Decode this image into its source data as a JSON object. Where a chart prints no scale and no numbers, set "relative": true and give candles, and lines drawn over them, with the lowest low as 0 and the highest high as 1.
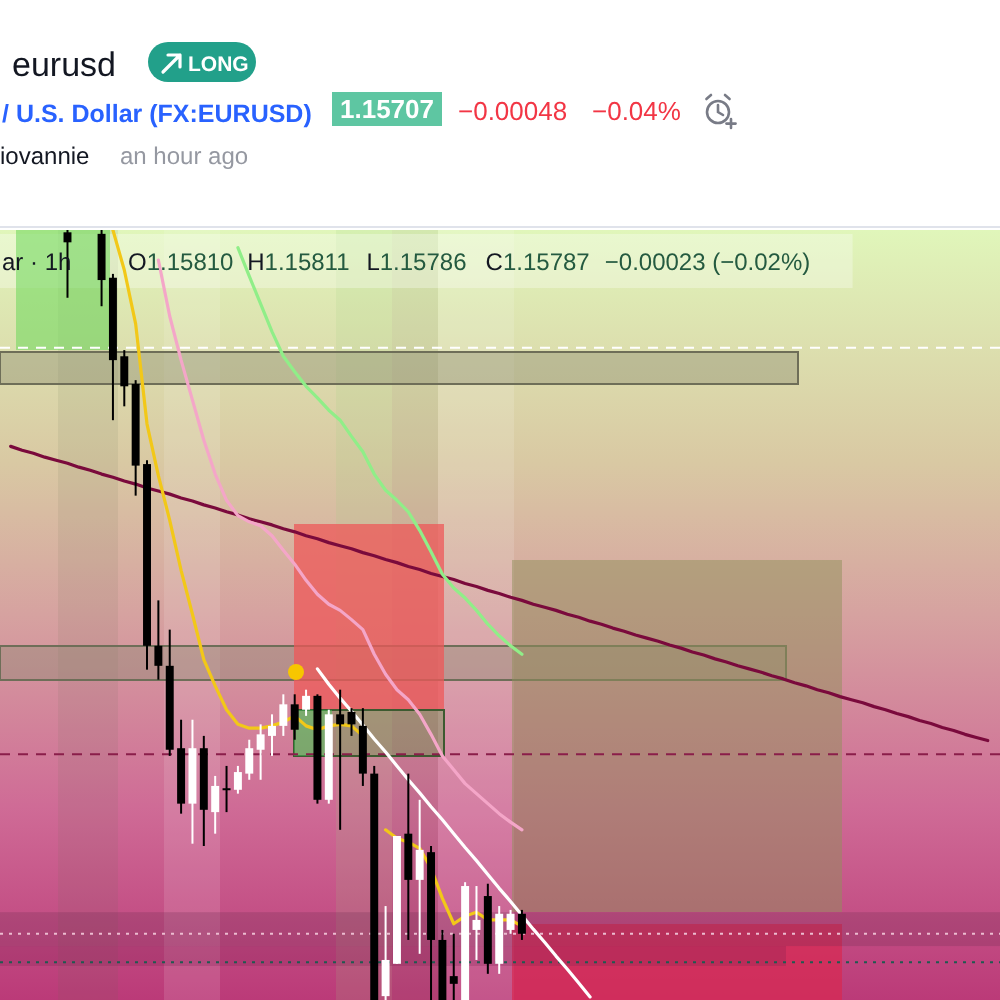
{
  "chart_data": {
    "type": "candlestick",
    "relative": true,
    "title": "eurusd",
    "subtitle": "/ U.S. Dollar (FX:EURUSD)",
    "annotations": [
      "LONG",
      "1.15707",
      "−0.00048",
      "−0.04%",
      "iovannie",
      "an hour ago",
      "ar · 1h",
      "O1.15810",
      "H1.15811",
      "L1.15786",
      "C1.15787",
      "−0.00023 (−0.02%)"
    ],
    "categories": [
      null,
      null,
      null,
      null,
      null,
      null,
      null,
      null,
      null,
      null,
      null,
      null,
      null,
      null,
      null,
      null,
      null,
      null,
      null,
      null,
      null,
      null,
      null,
      null,
      null,
      null,
      null,
      null,
      null,
      null,
      null,
      null,
      null,
      null,
      null,
      null,
      null,
      null,
      null,
      null,
      null,
      null,
      null,
      null,
      null,
      null,
      null,
      null,
      null,
      null,
      null,
      null,
      null,
      null,
      null,
      null,
      null,
      null,
      null,
      null,
      null,
      null,
      null,
      null,
      null,
      null,
      null,
      null,
      null,
      null,
      null,
      null,
      null,
      null,
      null,
      null,
      null,
      null,
      null,
      null,
      null,
      null,
      null,
      null,
      null,
      null,
      null
    ],
    "ohlc": [
      null,
      null,
      null,
      null,
      null,
      [
        0.997,
        1.0,
        0.912,
        0.984
      ],
      null,
      null,
      [
        0.995,
        1.0,
        0.901,
        0.935
      ],
      [
        0.938,
        0.943,
        0.753,
        0.831
      ],
      [
        0.836,
        0.844,
        0.771,
        0.797
      ],
      [
        0.8,
        0.805,
        0.655,
        0.694
      ],
      [
        0.696,
        0.701,
        0.429,
        0.46
      ],
      [
        0.46,
        0.519,
        0.416,
        0.434
      ],
      [
        0.434,
        0.481,
        0.317,
        0.325
      ],
      [
        0.327,
        0.364,
        0.242,
        0.255
      ],
      [
        0.255,
        0.364,
        0.203,
        0.327
      ],
      [
        0.327,
        0.343,
        0.2,
        0.247
      ],
      [
        0.244,
        0.291,
        0.216,
        0.278
      ],
      [
        0.275,
        0.304,
        0.244,
        0.273
      ],
      [
        0.273,
        0.304,
        0.268,
        0.296
      ],
      [
        0.294,
        0.338,
        0.286,
        0.327
      ],
      [
        0.325,
        0.358,
        0.286,
        0.345
      ],
      [
        0.343,
        0.371,
        0.317,
        0.356
      ],
      [
        0.356,
        0.397,
        0.343,
        0.384
      ],
      [
        0.384,
        0.397,
        0.338,
        0.351
      ],
      [
        0.377,
        0.403,
        0.369,
        0.395
      ],
      [
        0.395,
        0.397,
        0.255,
        0.26
      ],
      [
        0.26,
        0.377,
        0.255,
        0.371
      ],
      [
        0.371,
        0.403,
        0.221,
        0.358
      ],
      [
        0.374,
        0.379,
        0.343,
        0.358
      ],
      [
        0.356,
        0.379,
        0.278,
        0.294
      ],
      [
        0.294,
        0.304,
        0,
        0
      ],
      [
        0.005,
        0.122,
        0,
        0.052
      ],
      [
        0.047,
        0.213,
        0.047,
        0.213
      ],
      [
        0.216,
        0.294,
        0.078,
        0.156
      ],
      [
        0.156,
        0.26,
        0.06,
        0.195
      ],
      [
        0.192,
        0.2,
        0,
        0.078
      ],
      [
        0.078,
        0.091,
        0,
        0
      ],
      [
        0.031,
        0.086,
        0,
        0.021
      ],
      [
        0,
        0.153,
        0,
        0.148
      ],
      [
        0.091,
        0.148,
        0.052,
        0.104
      ],
      [
        0.135,
        0.151,
        0.034,
        0.047
      ],
      [
        0.047,
        0.122,
        0.034,
        0.112
      ],
      [
        0.091,
        0.117,
        0.086,
        0.112
      ],
      [
        0.112,
        0.117,
        0.078,
        0.086
      ],
      null,
      null,
      null,
      null,
      null,
      null,
      null,
      null,
      null,
      null,
      null,
      null,
      null,
      null,
      null,
      null,
      null,
      null,
      null,
      null,
      null,
      null,
      null,
      null,
      null,
      null,
      null,
      null,
      null,
      null,
      null,
      null,
      null,
      null,
      null,
      null,
      null,
      null,
      null,
      null,
      null
    ],
    "colors": [
      null,
      null,
      null,
      null,
      null,
      "#000000",
      null,
      null,
      "#000000",
      "#000000",
      "#000000",
      "#000000",
      "#000000",
      "#000000",
      "#000000",
      "#000000",
      "#ffffff",
      "#000000",
      "#ffffff",
      "#000000",
      "#ffffff",
      "#ffffff",
      "#ffffff",
      "#ffffff",
      "#ffffff",
      "#000000",
      "#ffffff",
      "#000000",
      "#ffffff",
      "#000000",
      "#000000",
      "#000000",
      "#000000",
      "#ffffff",
      "#ffffff",
      "#000000",
      "#ffffff",
      "#000000",
      "#000000",
      "#000000",
      "#ffffff",
      "#ffffff",
      "#000000",
      "#ffffff",
      "#ffffff",
      "#000000",
      null,
      null,
      null,
      null,
      null,
      null,
      null,
      null,
      null,
      null,
      null,
      null,
      null,
      null,
      null,
      null,
      null,
      null,
      null,
      null,
      null,
      null,
      null,
      null,
      null,
      null,
      null,
      null,
      null,
      null,
      null,
      null,
      null,
      null,
      null,
      null,
      null,
      null,
      null,
      null,
      null
    ],
    "series": [
      {
        "type": "line",
        "color": "#7a0a3c",
        "values": [
          0.719,
          0.714,
          0.71,
          0.705,
          0.701,
          0.697,
          0.692,
          0.688,
          0.683,
          0.679,
          0.674,
          0.67,
          0.665,
          0.661,
          0.657,
          0.652,
          0.648,
          0.643,
          0.639,
          0.634,
          0.63,
          0.625,
          0.621,
          0.617,
          0.612,
          0.608,
          0.603,
          0.599,
          0.594,
          0.59,
          0.586,
          0.581,
          0.577,
          0.572,
          0.568,
          0.563,
          0.559,
          0.554,
          0.55,
          0.546,
          0.541,
          0.537,
          0.532,
          0.528,
          0.523,
          0.519,
          0.514,
          0.51,
          0.506,
          0.501,
          0.497,
          0.492,
          0.488,
          0.483,
          0.479,
          0.474,
          0.47,
          0.466,
          0.461,
          0.457,
          0.452,
          0.448,
          0.443,
          0.439,
          0.434,
          0.43,
          0.426,
          0.421,
          0.417,
          0.412,
          0.408,
          0.403,
          0.399,
          0.394,
          0.39,
          0.386,
          0.381,
          0.377,
          0.372,
          0.368,
          0.363,
          0.359,
          0.354,
          0.35,
          0.345,
          0.341,
          0.337
        ]
      },
      {
        "type": "line",
        "color": "#90ee88",
        "values": [
          null,
          null,
          null,
          null,
          null,
          null,
          null,
          null,
          null,
          null,
          null,
          null,
          null,
          null,
          null,
          null,
          null,
          null,
          null,
          null,
          0.977,
          0.94,
          0.904,
          0.868,
          0.836,
          0.816,
          0.797,
          0.782,
          0.766,
          0.753,
          0.732,
          0.712,
          0.683,
          0.662,
          0.649,
          0.634,
          0.61,
          0.582,
          0.553,
          0.535,
          0.522,
          0.506,
          0.488,
          0.473,
          0.46,
          0.449,
          null,
          null,
          null,
          null,
          null,
          null,
          null,
          null,
          null,
          null,
          null,
          null,
          null,
          null,
          null,
          null,
          null,
          null,
          null,
          null,
          null,
          null,
          null,
          null,
          null,
          null,
          null,
          null,
          null,
          null,
          null,
          null,
          null,
          null,
          null,
          null,
          null,
          null,
          null,
          null,
          null
        ]
      },
      {
        "type": "line",
        "color": "#f4a6c8",
        "values": [
          null,
          null,
          null,
          null,
          null,
          null,
          null,
          null,
          null,
          null,
          null,
          null,
          null,
          0.961,
          0.888,
          0.831,
          0.779,
          0.727,
          0.683,
          0.649,
          0.629,
          0.621,
          0.616,
          0.603,
          0.584,
          0.566,
          0.545,
          0.527,
          0.514,
          0.506,
          0.494,
          0.481,
          0.449,
          0.423,
          0.403,
          0.39,
          0.371,
          0.345,
          0.317,
          0.299,
          0.281,
          0.268,
          0.255,
          0.242,
          0.231,
          0.221,
          null,
          null,
          null,
          null,
          null,
          null,
          null,
          null,
          null,
          null,
          null,
          null,
          null,
          null,
          null,
          null,
          null,
          null,
          null,
          null,
          null,
          null,
          null,
          null,
          null,
          null,
          null,
          null,
          null,
          null,
          null,
          null,
          null,
          null,
          null,
          null,
          null,
          null,
          null,
          null,
          null
        ]
      },
      {
        "type": "line",
        "color": "#f2c818",
        "values": [
          null,
          null,
          null,
          null,
          null,
          null,
          null,
          null,
          null,
          1.0,
          0.948,
          0.878,
          0.748,
          0.681,
          0.623,
          0.558,
          0.501,
          0.442,
          0.408,
          0.377,
          0.358,
          0.353,
          0.353,
          0.356,
          0.361,
          0.369,
          0.356,
          0.351,
          0.356,
          0.358,
          0.356,
          0.343,
          null,
          0.221,
          0.21,
          0.205,
          0.197,
          0.171,
          0.132,
          0.099,
          0.109,
          0.114,
          0.104,
          0.104,
          0.104,
          0.096,
          null,
          null,
          null,
          null,
          null,
          null,
          null,
          null,
          null,
          null,
          null,
          null,
          null,
          null,
          null,
          null,
          null,
          null,
          null,
          null,
          null,
          null,
          null,
          null,
          null,
          null,
          null,
          null,
          null,
          null,
          null,
          null,
          null,
          null,
          null,
          null,
          null,
          null,
          null,
          null,
          null
        ]
      },
      {
        "type": "line",
        "color": "#ffffff",
        "values": [
          null,
          null,
          null,
          null,
          null,
          null,
          null,
          null,
          null,
          null,
          null,
          null,
          null,
          null,
          null,
          null,
          null,
          null,
          null,
          null,
          null,
          null,
          null,
          null,
          null,
          null,
          null,
          0.43,
          0.41,
          0.392,
          0.375,
          0.357,
          0.339,
          0.322,
          0.304,
          0.286,
          0.269,
          0.251,
          0.234,
          0.216,
          0.198,
          0.181,
          0.163,
          0.145,
          0.128,
          0.11,
          0.092,
          0.075,
          0.057,
          0.04,
          0.022,
          0.004,
          null,
          null,
          null,
          null,
          null,
          null,
          null,
          null,
          null,
          null,
          null,
          null,
          null,
          null,
          null,
          null,
          null,
          null,
          null,
          null,
          null,
          null,
          null,
          null,
          null,
          null,
          null,
          null,
          null,
          null,
          null,
          null,
          null,
          null,
          null
        ]
      }
    ],
    "ref_lines": [
      {
        "axis": "y",
        "value": 0.847,
        "color": "#ffffff",
        "line_style": "dashed"
      },
      {
        "axis": "y",
        "value": 0.319,
        "color": "#8a1e4a",
        "line_style": "dashed"
      },
      {
        "axis": "y",
        "value": 0.086,
        "color": "#ecbcd0",
        "line_style": "dotted"
      },
      {
        "axis": "y",
        "value": 0.049,
        "color": "#1f5a50",
        "line_style": "dotted"
      }
    ],
    "bands": [
      {
        "axis": "y",
        "from": 0.07,
        "to": 0.114,
        "color": "#6a2a50"
      }
    ]
  }
}
